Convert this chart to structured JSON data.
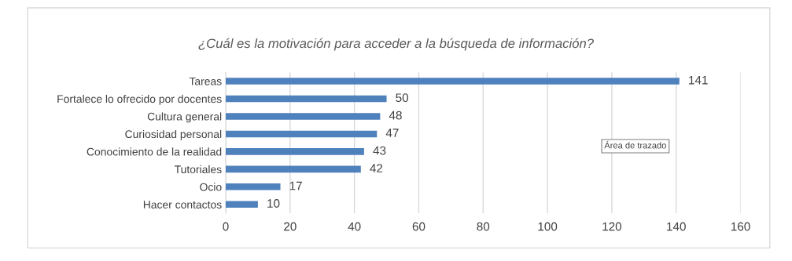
{
  "chart_data": {
    "type": "bar",
    "orientation": "horizontal",
    "title": "¿Cuál es la motivación para acceder a la búsqueda de información?",
    "categories": [
      "Tareas",
      "Fortalece lo ofrecido por docentes",
      "Cultura general",
      "Curiosidad personal",
      "Conocimiento de la realidad",
      "Tutoriales",
      "Ocio",
      "Hacer contactos"
    ],
    "values": [
      141,
      50,
      48,
      47,
      43,
      42,
      17,
      10
    ],
    "color": "#4f81bd",
    "xlim": [
      0,
      160
    ],
    "xticks": [
      0,
      20,
      40,
      60,
      80,
      100,
      120,
      140,
      160
    ],
    "grid": "x",
    "data_labels": true,
    "annotations": [
      "Área de trazado"
    ]
  }
}
